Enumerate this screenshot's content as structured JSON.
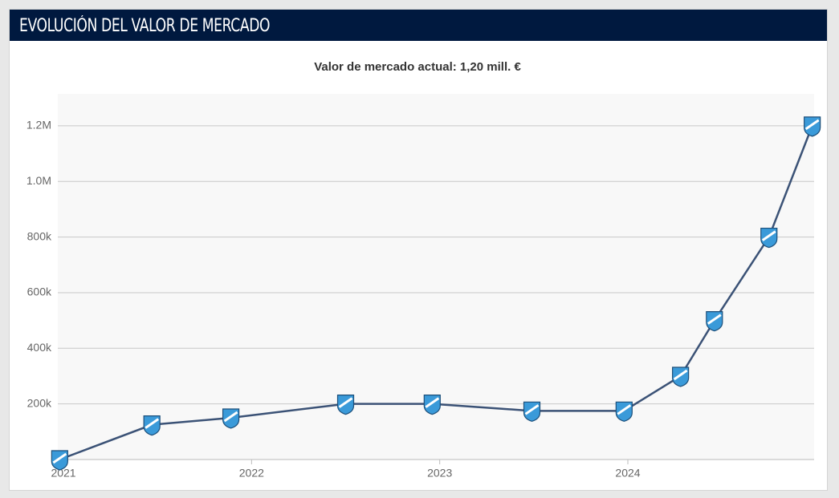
{
  "header": {
    "title": "EVOLUCIÓN DEL VALOR DE MERCADO"
  },
  "chart_data": {
    "type": "line",
    "subtitle": "Valor de mercado actual: 1,20 mill. €",
    "x": [
      2020.98,
      2021.47,
      2021.89,
      2022.5,
      2022.96,
      2023.49,
      2023.98,
      2024.28,
      2024.46,
      2024.75,
      2024.98
    ],
    "series": [
      {
        "color": "#3b5276",
        "values": [
          0,
          125000,
          150000,
          200000,
          200000,
          175000,
          175000,
          300000,
          500000,
          800000,
          1200000
        ]
      }
    ],
    "xlim": [
      2020.97,
      2024.99
    ],
    "xticks": [
      2021,
      2022,
      2023,
      2024
    ],
    "ylim": [
      0,
      1315000
    ],
    "yticks": [
      {
        "value": 200000,
        "label": "200k"
      },
      {
        "value": 400000,
        "label": "400k"
      },
      {
        "value": 600000,
        "label": "600k"
      },
      {
        "value": 800000,
        "label": "800k"
      },
      {
        "value": 1000000,
        "label": "1.0M"
      },
      {
        "value": 1200000,
        "label": "1.2M"
      }
    ],
    "grid": true
  }
}
